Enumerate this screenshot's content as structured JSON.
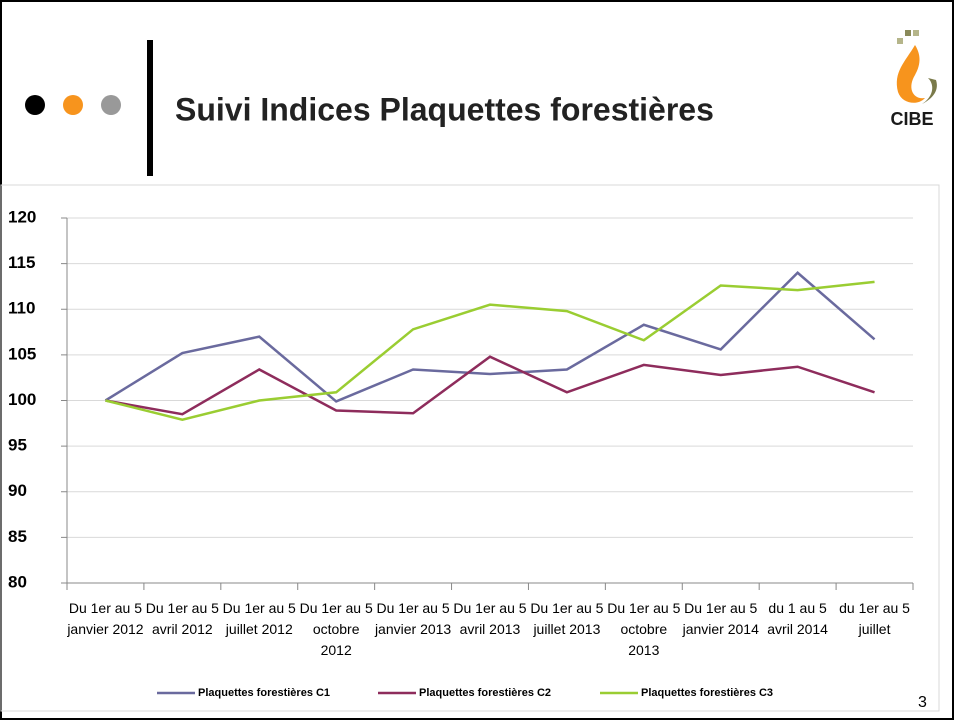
{
  "slide": {
    "title": "Suivi Indices Plaquettes forestières",
    "logo_text": "CIBE",
    "page_number": "3"
  },
  "chart_data": {
    "type": "line",
    "categories": [
      "Du 1er au 5 janvier 2012",
      "Du 1er au 5 avril 2012",
      "Du 1er au 5 juillet 2012",
      "Du 1er au 5 octobre 2012",
      "Du 1er au 5 janvier 2013",
      "Du 1er au 5 avril 2013",
      "Du 1er au 5 juillet 2013",
      "Du 1er au 5 octobre 2013",
      "Du 1er au 5 janvier 2014",
      "du 1 au 5 avril 2014",
      "du 1er au 5 juillet"
    ],
    "series": [
      {
        "name": "Plaquettes forestières C1",
        "color": "#6a6a9e",
        "values": [
          100,
          105.2,
          107,
          99.9,
          103.4,
          102.9,
          103.4,
          108.3,
          105.6,
          114,
          106.7
        ]
      },
      {
        "name": "Plaquettes forestières C2",
        "color": "#8e2c5c",
        "values": [
          100,
          98.5,
          103.4,
          98.9,
          98.6,
          104.8,
          100.9,
          103.9,
          102.8,
          103.7,
          100.9
        ]
      },
      {
        "name": "Plaquettes forestières C3",
        "color": "#9acd32",
        "values": [
          100,
          97.9,
          100,
          100.9,
          107.8,
          110.5,
          109.8,
          106.6,
          112.6,
          112.1,
          113
        ]
      }
    ],
    "ylim": [
      80,
      120
    ],
    "yticks": [
      80,
      85,
      90,
      95,
      100,
      105,
      110,
      115,
      120
    ],
    "grid": true,
    "legend": "bottom"
  }
}
